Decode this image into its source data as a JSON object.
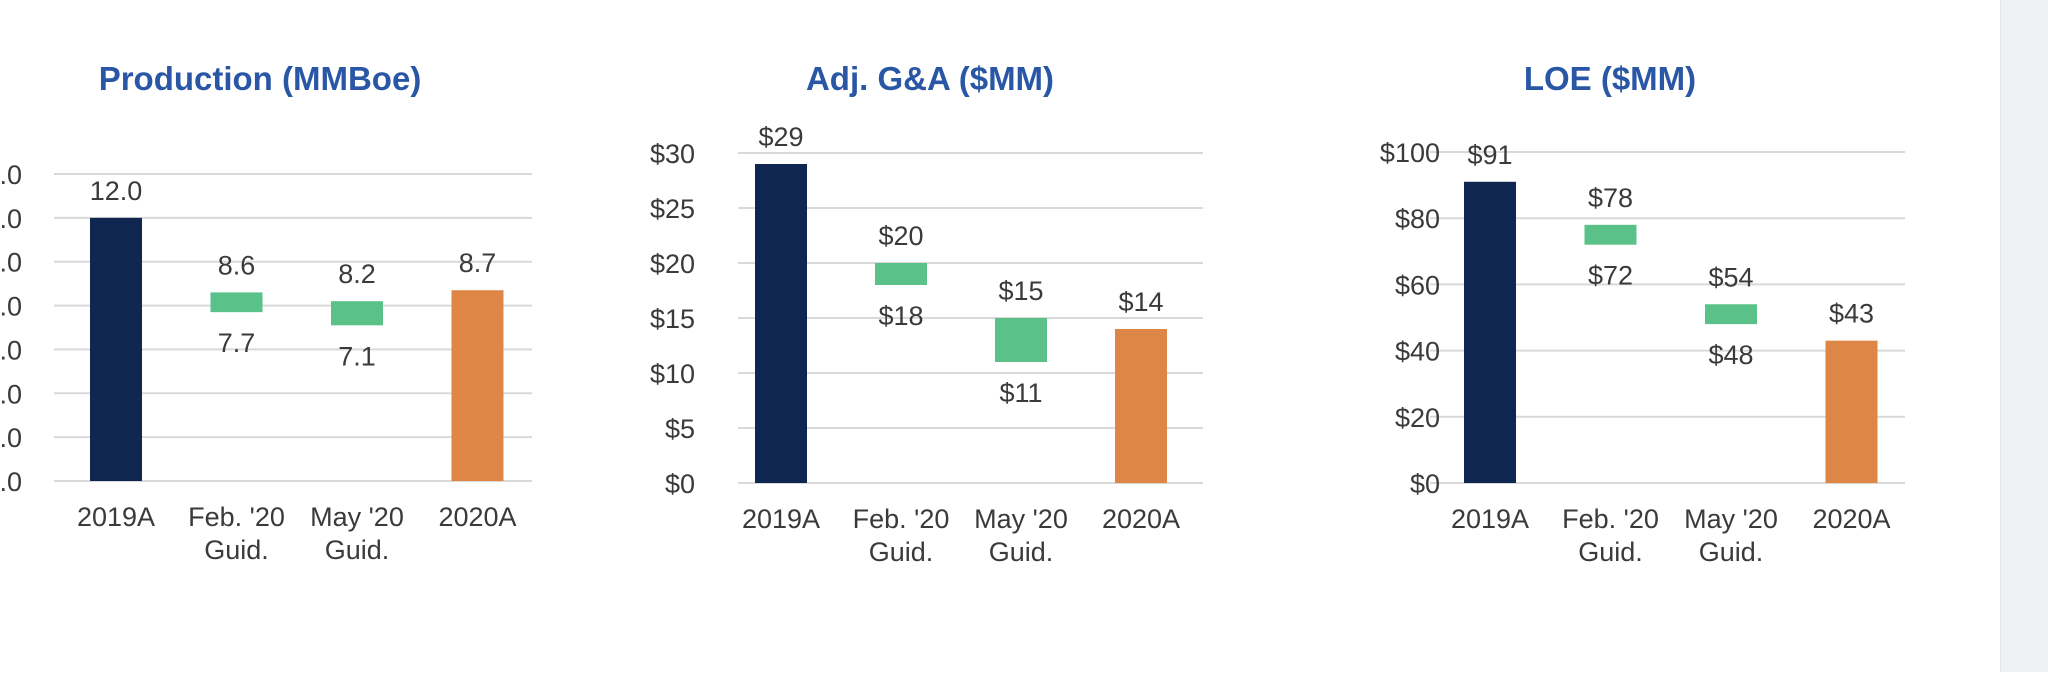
{
  "colors": {
    "actual_2019": "#0f2650",
    "guidance": "#5ac189",
    "actual_2020": "#de8646",
    "title": "#2a57a5",
    "gridline": "#d9d9d9",
    "text": "#3a3a3a"
  },
  "chart_data": [
    {
      "type": "bar",
      "title": "Production (MMBoe)",
      "categories": [
        "2019A",
        [
          "Feb. '20",
          "Guid."
        ],
        [
          "May '20",
          "Guid."
        ],
        "2020A"
      ],
      "ylim": [
        0,
        14
      ],
      "ytick_step": 2,
      "ytick_labels": [
        ".0",
        ".0",
        ".0",
        ".0",
        ".0",
        ".0",
        ".0",
        ".0"
      ],
      "bars": [
        {
          "kind": "actual_2019",
          "value": 12.0,
          "label": "12.0"
        },
        {
          "kind": "guidance",
          "low": 7.7,
          "high": 8.6,
          "low_label": "7.7",
          "high_label": "8.6"
        },
        {
          "kind": "guidance",
          "low": 7.1,
          "high": 8.2,
          "low_label": "7.1",
          "high_label": "8.2"
        },
        {
          "kind": "actual_2020",
          "value": 8.7,
          "label": "8.7"
        }
      ],
      "grid": true
    },
    {
      "type": "bar",
      "title": "Adj. G&A ($MM)",
      "categories": [
        "2019A",
        [
          "Feb. '20",
          "Guid."
        ],
        [
          "May '20",
          "Guid."
        ],
        "2020A"
      ],
      "ylim": [
        0,
        30
      ],
      "ytick_step": 5,
      "ytick_labels": [
        "$0",
        "$5",
        "$10",
        "$15",
        "$20",
        "$25",
        "$30"
      ],
      "bars": [
        {
          "kind": "actual_2019",
          "value": 29,
          "label": "$29"
        },
        {
          "kind": "guidance",
          "low": 18,
          "high": 20,
          "low_label": "$18",
          "high_label": "$20"
        },
        {
          "kind": "guidance",
          "low": 11,
          "high": 15,
          "low_label": "$11",
          "high_label": "$15"
        },
        {
          "kind": "actual_2020",
          "value": 14,
          "label": "$14"
        }
      ],
      "grid": true
    },
    {
      "type": "bar",
      "title": "LOE ($MM)",
      "categories": [
        "2019A",
        [
          "Feb. '20",
          "Guid."
        ],
        [
          "May '20",
          "Guid."
        ],
        "2020A"
      ],
      "ylim": [
        0,
        100
      ],
      "ytick_step": 20,
      "ytick_labels": [
        "$0",
        "$20",
        "$40",
        "$60",
        "$80",
        "$100"
      ],
      "bars": [
        {
          "kind": "actual_2019",
          "value": 91,
          "label": "$91"
        },
        {
          "kind": "guidance",
          "low": 72,
          "high": 78,
          "low_label": "$72",
          "high_label": "$78"
        },
        {
          "kind": "guidance",
          "low": 48,
          "high": 54,
          "low_label": "$48",
          "high_label": "$54"
        },
        {
          "kind": "actual_2020",
          "value": 43,
          "label": "$43"
        }
      ],
      "grid": true
    }
  ]
}
